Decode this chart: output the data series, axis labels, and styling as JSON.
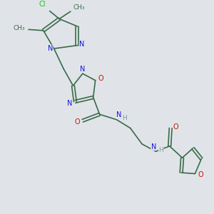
{
  "bg_color": "#e0e4e8",
  "bond_color": "#3a6a4a",
  "N_color": "#1515dd",
  "O_color": "#cc1100",
  "Cl_color": "#22bb22",
  "H_color": "#7a9a9a",
  "figsize": [
    3.0,
    3.0
  ],
  "dpi": 100,
  "xlim": [
    0,
    10
  ],
  "ylim": [
    0,
    10
  ],
  "lw": 1.2,
  "fontsize": 7.0
}
